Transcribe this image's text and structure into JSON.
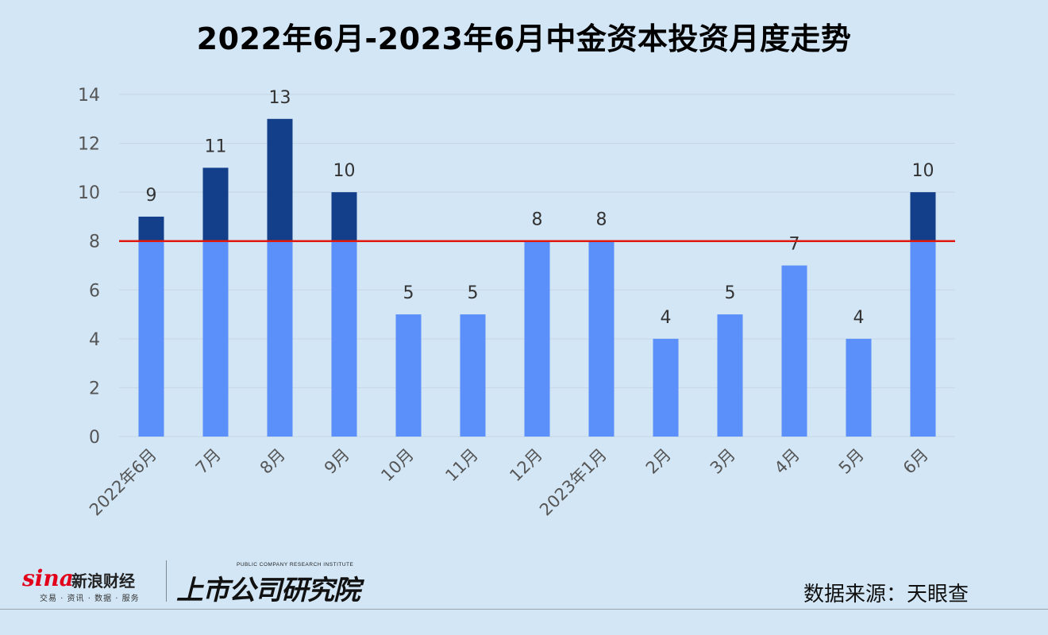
{
  "title": "2022年6月-2023年6月中金资本投资月度走势",
  "chart_data": {
    "type": "bar",
    "categories": [
      "2022年6月",
      "7月",
      "8月",
      "9月",
      "10月",
      "11月",
      "12月",
      "2023年1月",
      "2月",
      "3月",
      "4月",
      "5月",
      "6月"
    ],
    "values": [
      9,
      11,
      13,
      10,
      5,
      5,
      8,
      8,
      4,
      5,
      7,
      4,
      10
    ],
    "ylim": [
      0,
      14
    ],
    "yticks": [
      0,
      2,
      4,
      6,
      8,
      10,
      12,
      14
    ],
    "reference_line": 8,
    "grid": true,
    "colors": {
      "below_reference": "#5b8ff9",
      "above_reference": "#133e8a",
      "reference_line": "#e0190f",
      "grid": "#c6d6e4",
      "axis_text": "#555555"
    }
  },
  "footer": {
    "sina_word": "sina",
    "sina_cn": "新浪财经",
    "sina_sub": "交易 · 资讯 · 数据 · 服务",
    "institute_en": "PUBLIC COMPANY RESEARCH INSTITUTE",
    "institute_cn": "上市公司研究院",
    "source": "数据来源：天眼查"
  }
}
